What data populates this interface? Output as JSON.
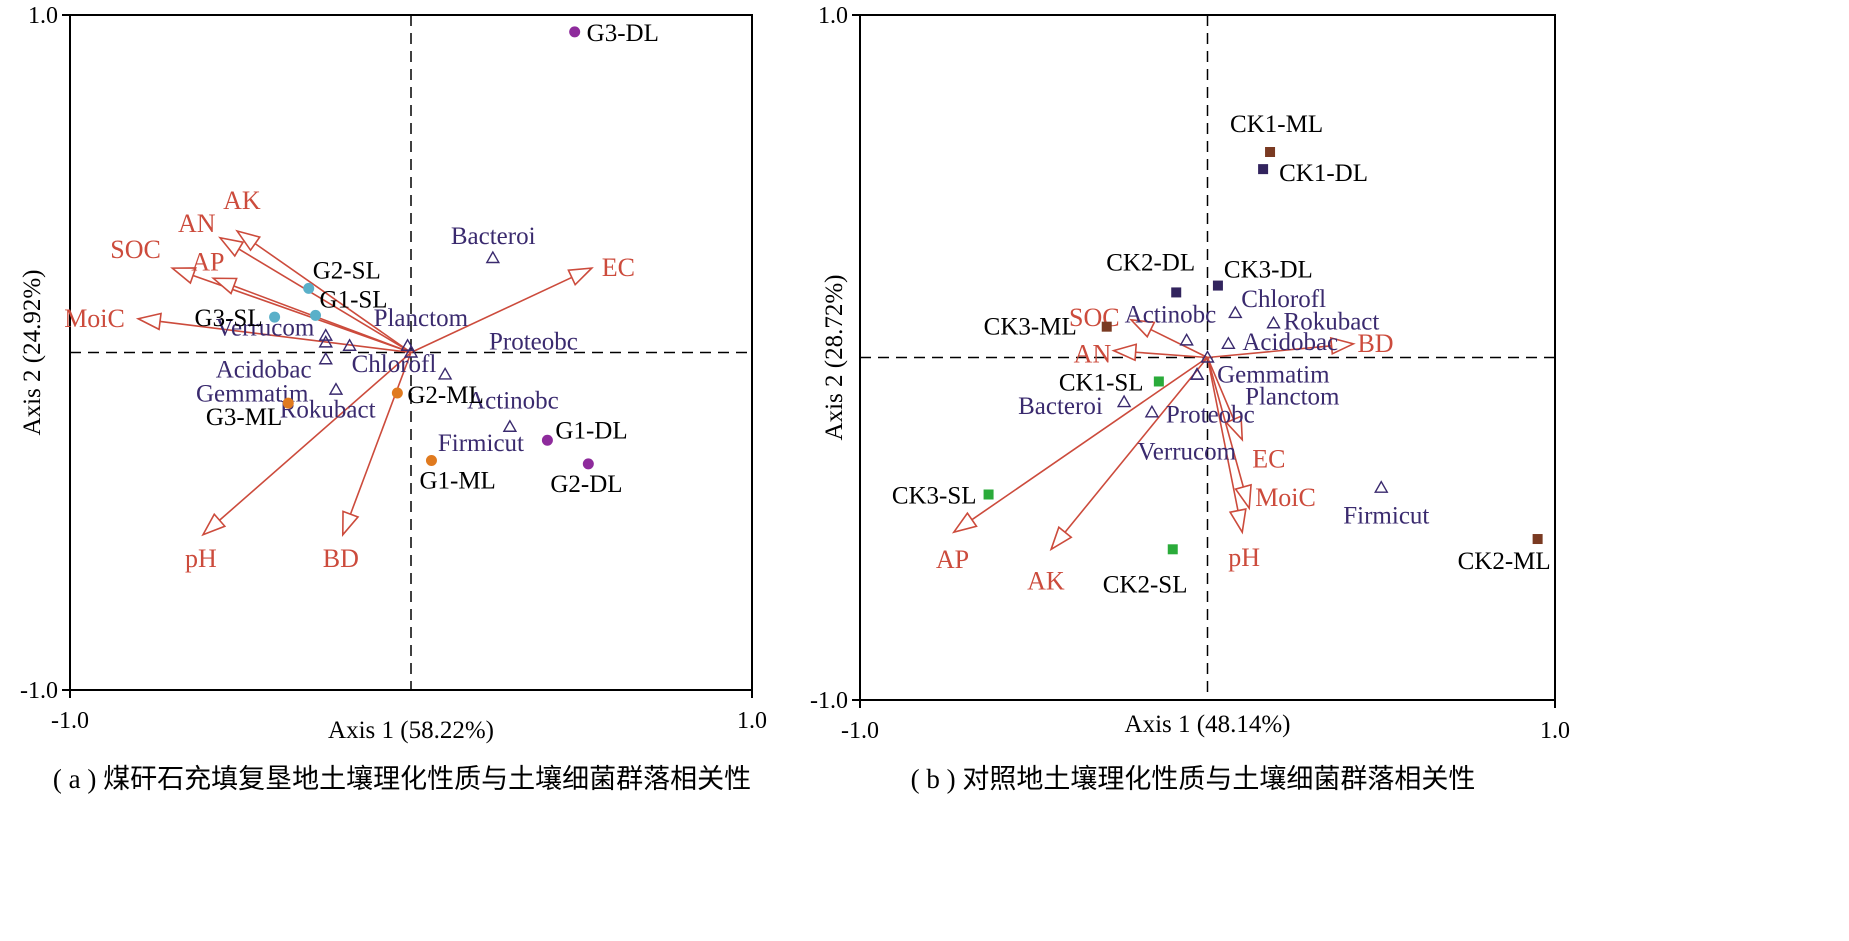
{
  "colors": {
    "env": "#cc4b3c",
    "species": "#3a2a6e",
    "axis": "#000000"
  },
  "chart_data": [
    {
      "type": "scatter",
      "caption": "( a ) 煤矸石充填复垦地土壤理化性质与土壤细菌群落相关性",
      "xlabel": "Axis 1 (58.22%)",
      "ylabel": "Axis 2 (24.92%)",
      "xlim": [
        -1.0,
        1.0
      ],
      "ylim": [
        -1.0,
        1.0
      ],
      "tick_labels": {
        "xmin": "-1.0",
        "xmax": "1.0",
        "ymin": "-1.0",
        "ymax": "1.0"
      },
      "samples": [
        {
          "name": "G3-DL",
          "x": 0.48,
          "y": 0.95,
          "color": "#8e2b9c",
          "shape": "circle"
        },
        {
          "name": "G2-SL",
          "x": -0.3,
          "y": 0.19,
          "color": "#5ab0c9",
          "shape": "circle"
        },
        {
          "name": "G1-SL",
          "x": -0.28,
          "y": 0.11,
          "color": "#5ab0c9",
          "shape": "circle"
        },
        {
          "name": "G3-SL",
          "x": -0.4,
          "y": 0.105,
          "color": "#5ab0c9",
          "shape": "circle"
        },
        {
          "name": "G3-ML",
          "x": -0.36,
          "y": -0.15,
          "color": "#e07a1f",
          "shape": "circle"
        },
        {
          "name": "G2-ML",
          "x": -0.04,
          "y": -0.12,
          "color": "#e07a1f",
          "shape": "circle"
        },
        {
          "name": "G1-ML",
          "x": 0.06,
          "y": -0.32,
          "color": "#e07a1f",
          "shape": "circle"
        },
        {
          "name": "G1-DL",
          "x": 0.4,
          "y": -0.26,
          "color": "#8e2b9c",
          "shape": "circle"
        },
        {
          "name": "G2-DL",
          "x": 0.52,
          "y": -0.33,
          "color": "#8e2b9c",
          "shape": "circle"
        }
      ],
      "species": [
        {
          "name": "Bacteroi",
          "x": 0.24,
          "y": 0.28
        },
        {
          "name": "Planctom",
          "x": -0.01,
          "y": 0.02
        },
        {
          "name": "Proteobc",
          "x": 0.0,
          "y": 0.0
        },
        {
          "name": "Verrucom",
          "x": -0.25,
          "y": 0.05
        },
        {
          "name": "Acidobac",
          "x": -0.25,
          "y": -0.02
        },
        {
          "name": "Chlorofl",
          "x": -0.18,
          "y": 0.02
        },
        {
          "name": "Actinobc",
          "x": 0.1,
          "y": -0.065
        },
        {
          "name": "Gemmatim",
          "x": -0.22,
          "y": -0.11
        },
        {
          "name": "Rokubact",
          "x": -0.25,
          "y": 0.03
        },
        {
          "name": "Firmicut",
          "x": 0.29,
          "y": -0.22
        }
      ],
      "env": [
        {
          "name": "AN",
          "x": -0.56,
          "y": 0.34
        },
        {
          "name": "AK",
          "x": -0.51,
          "y": 0.36
        },
        {
          "name": "SOC",
          "x": -0.7,
          "y": 0.25
        },
        {
          "name": "AP",
          "x": -0.58,
          "y": 0.22
        },
        {
          "name": "MoiC",
          "x": -0.8,
          "y": 0.1
        },
        {
          "name": "EC",
          "x": 0.53,
          "y": 0.25
        },
        {
          "name": "pH",
          "x": -0.61,
          "y": -0.54
        },
        {
          "name": "BD",
          "x": -0.2,
          "y": -0.54
        }
      ]
    },
    {
      "type": "scatter",
      "caption": "( b ) 对照地土壤理化性质与土壤细菌群落相关性",
      "xlabel": "Axis 1 (48.14%)",
      "ylabel": "Axis 2 (28.72%)",
      "xlim": [
        -1.0,
        1.0
      ],
      "ylim": [
        -1.0,
        1.0
      ],
      "tick_labels": {
        "xmin": "-1.0",
        "xmax": "1.0",
        "ymin": "-1.0",
        "ymax": "1.0"
      },
      "samples": [
        {
          "name": "CK1-ML",
          "x": 0.18,
          "y": 0.6,
          "color": "#7a3a22",
          "shape": "square"
        },
        {
          "name": "CK1-DL",
          "x": 0.16,
          "y": 0.55,
          "color": "#32245e",
          "shape": "square"
        },
        {
          "name": "CK2-DL",
          "x": -0.09,
          "y": 0.19,
          "color": "#32245e",
          "shape": "square"
        },
        {
          "name": "CK3-DL",
          "x": 0.03,
          "y": 0.21,
          "color": "#32245e",
          "shape": "square"
        },
        {
          "name": "CK3-ML",
          "x": -0.29,
          "y": 0.09,
          "color": "#7a3a22",
          "shape": "square"
        },
        {
          "name": "CK1-SL",
          "x": -0.14,
          "y": -0.07,
          "color": "#2aab3a",
          "shape": "square"
        },
        {
          "name": "CK3-SL",
          "x": -0.63,
          "y": -0.4,
          "color": "#2aab3a",
          "shape": "square"
        },
        {
          "name": "CK2-SL",
          "x": -0.1,
          "y": -0.56,
          "color": "#2aab3a",
          "shape": "square"
        },
        {
          "name": "CK2-ML",
          "x": 0.95,
          "y": -0.53,
          "color": "#7a3a22",
          "shape": "square"
        }
      ],
      "species": [
        {
          "name": "Chlorofl",
          "x": 0.08,
          "y": 0.13
        },
        {
          "name": "Actinobc",
          "x": -0.06,
          "y": 0.05
        },
        {
          "name": "Rokubact",
          "x": 0.19,
          "y": 0.1
        },
        {
          "name": "Acidobac",
          "x": 0.06,
          "y": 0.04
        },
        {
          "name": "Gemmatim",
          "x": -0.03,
          "y": -0.05
        },
        {
          "name": "Planctom",
          "x": -0.03,
          "y": -0.05
        },
        {
          "name": "Bacteroi",
          "x": -0.24,
          "y": -0.13
        },
        {
          "name": "Proteobc",
          "x": -0.16,
          "y": -0.16
        },
        {
          "name": "Verrucom",
          "x": 0.0,
          "y": 0.0
        },
        {
          "name": "Firmicut",
          "x": 0.5,
          "y": -0.38
        }
      ],
      "env": [
        {
          "name": "SOC",
          "x": -0.22,
          "y": 0.11
        },
        {
          "name": "AN",
          "x": -0.27,
          "y": 0.02
        },
        {
          "name": "BD",
          "x": 0.42,
          "y": 0.04
        },
        {
          "name": "EC",
          "x": 0.1,
          "y": -0.24
        },
        {
          "name": "MoiC",
          "x": 0.12,
          "y": -0.44
        },
        {
          "name": "pH",
          "x": 0.1,
          "y": -0.51
        },
        {
          "name": "AP",
          "x": -0.73,
          "y": -0.51
        },
        {
          "name": "AK",
          "x": -0.45,
          "y": -0.56
        }
      ]
    }
  ]
}
